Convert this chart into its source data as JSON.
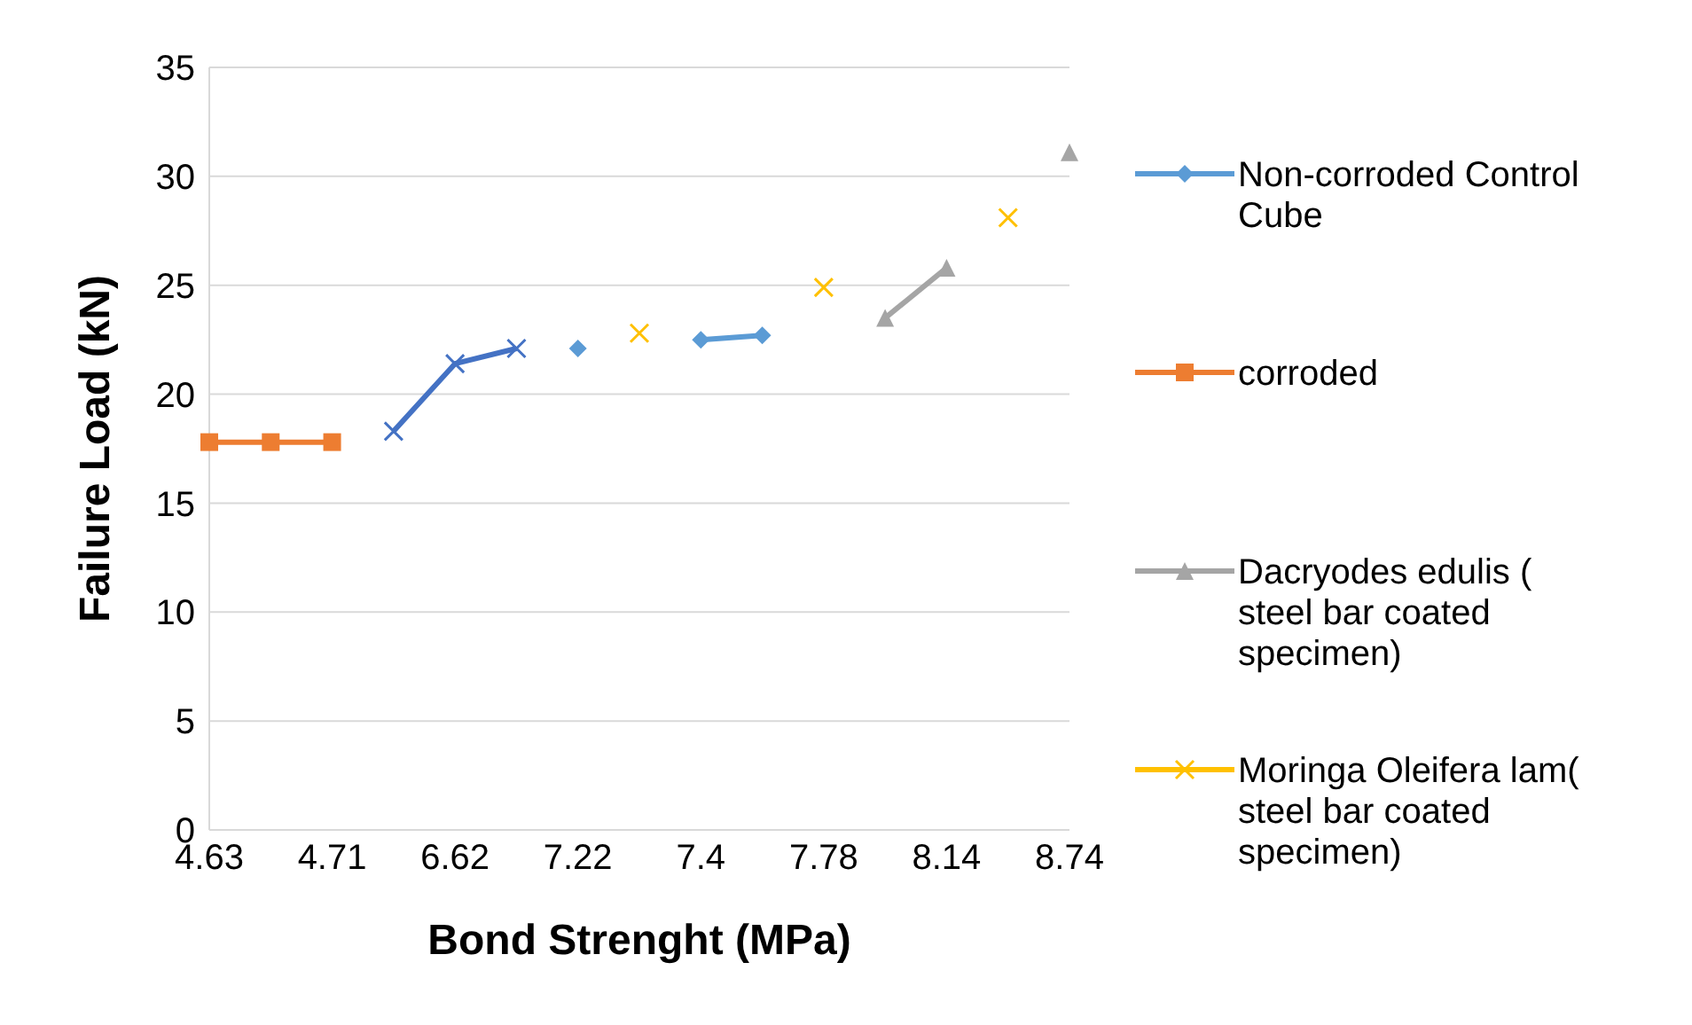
{
  "chart_data": {
    "type": "line",
    "xlabel": "Bond Strenght (MPa)",
    "ylabel": "Failure  Load (kN)",
    "categories": [
      "4.63",
      null,
      "4.71",
      null,
      "6.62",
      null,
      "7.22",
      null,
      "7.4",
      null,
      "7.78",
      null,
      "8.14",
      null,
      "8.74"
    ],
    "ylim": [
      0,
      35
    ],
    "yticks": [
      0,
      5,
      10,
      15,
      20,
      25,
      30,
      35
    ],
    "grid": "y",
    "legend": "right",
    "series": [
      {
        "name": "Non-corroded Control Cube",
        "color": "#5b9bd5",
        "marker": "diamond",
        "values": [
          null,
          null,
          null,
          null,
          null,
          null,
          22.1,
          null,
          22.5,
          22.7,
          null,
          null,
          null,
          null,
          null
        ]
      },
      {
        "name": "corroded",
        "color": "#ed7d31",
        "marker": "square",
        "values": [
          17.8,
          17.8,
          17.8,
          null,
          null,
          null,
          null,
          null,
          null,
          null,
          null,
          null,
          null,
          null,
          null
        ]
      },
      {
        "color": "#4472c4",
        "marker": "cross",
        "values": [
          null,
          null,
          null,
          18.3,
          21.4,
          22.1,
          null,
          null,
          null,
          null,
          null,
          null,
          null,
          null,
          null
        ]
      },
      {
        "name": "Dacryodes edulis ( steel bar coated specimen)",
        "color": "#a5a5a5",
        "marker": "triangle",
        "values": [
          null,
          null,
          null,
          null,
          null,
          null,
          null,
          null,
          null,
          null,
          null,
          23.5,
          25.8,
          null,
          31.1
        ]
      },
      {
        "name": "Moringa Oleifera lam( steel bar coated specimen)",
        "color": "#ffc000",
        "marker": "cross",
        "values": [
          null,
          null,
          null,
          null,
          null,
          null,
          null,
          22.8,
          null,
          null,
          24.9,
          null,
          null,
          28.1,
          null
        ]
      }
    ]
  }
}
